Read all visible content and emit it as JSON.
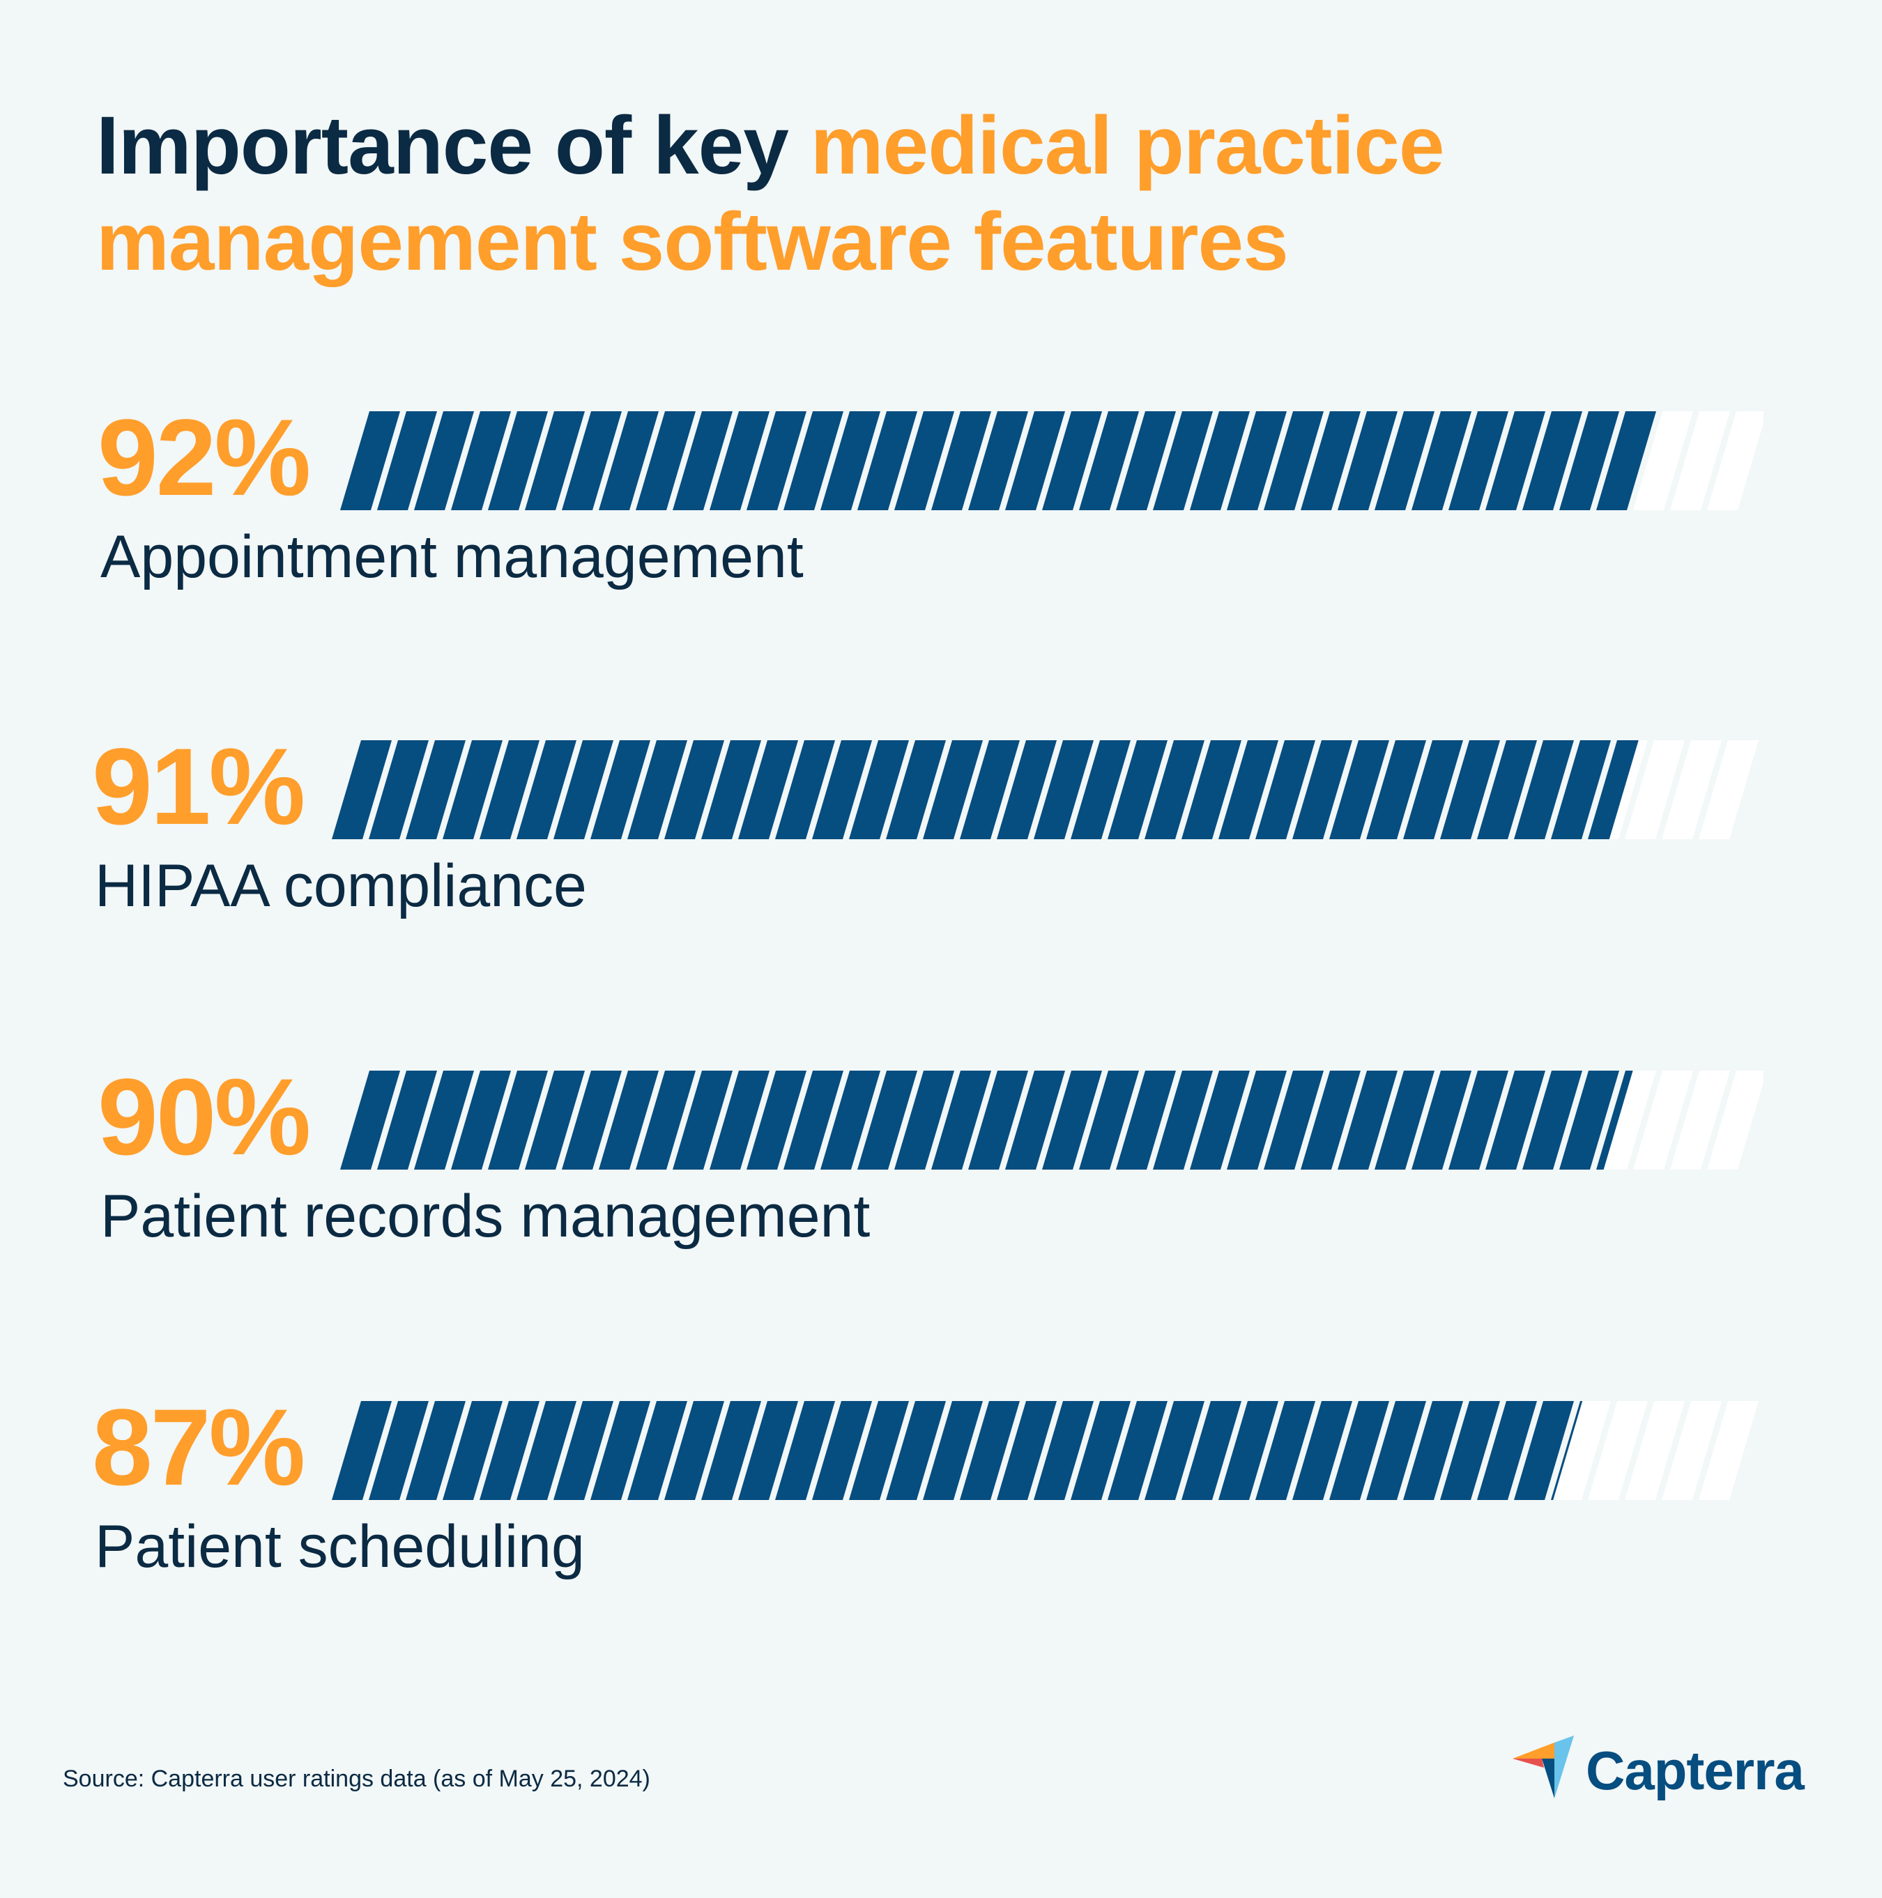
{
  "title": {
    "part1": "Importance of key ",
    "part2": "medical practice management software features"
  },
  "colors": {
    "background": "#f2f7f7",
    "navy": "#0b2a43",
    "accent": "#ff9e2b",
    "bar_fill": "#064d80",
    "bar_empty": "#ffffff"
  },
  "chart_data": {
    "type": "bar",
    "orientation": "horizontal",
    "categories": [
      "Appointment management",
      "HIPAA compliance",
      "Patient records management",
      "Patient scheduling"
    ],
    "values": [
      92,
      91,
      90,
      87
    ],
    "value_labels": [
      "92%",
      "91%",
      "90%",
      "87%"
    ],
    "xlim": [
      0,
      100
    ],
    "unit": "%"
  },
  "source": "Source: Capterra user ratings data (as of May 25, 2024)",
  "logo": {
    "text": "Capterra"
  }
}
